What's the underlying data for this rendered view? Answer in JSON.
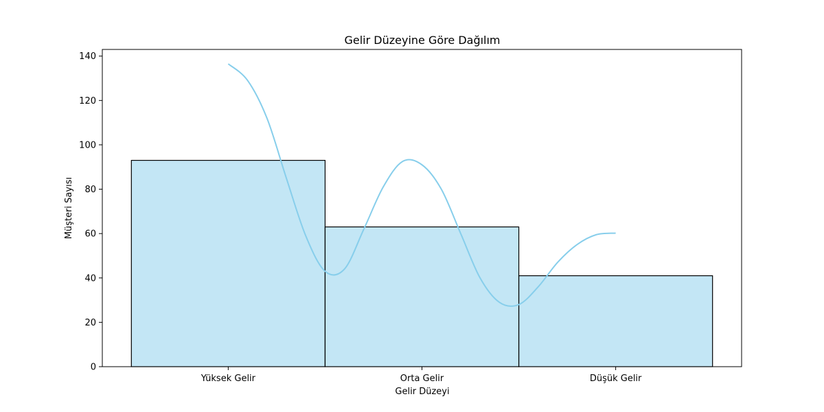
{
  "chart_data": {
    "type": "bar",
    "title": "Gelir Düzeyine Göre Dağılım",
    "xlabel": "Gelir Düzeyi",
    "ylabel": "Müşteri Sayısı",
    "categories": [
      "Yüksek Gelir",
      "Orta Gelir",
      "Düşük Gelir"
    ],
    "values": [
      93,
      63,
      41
    ],
    "ylim": [
      0,
      143
    ],
    "yticks": [
      0,
      20,
      40,
      60,
      80,
      100,
      120,
      140
    ],
    "grid": false,
    "legend": "none",
    "bar_color": "#87CEEB",
    "bar_edge_color": "#000000",
    "kde_color": "#87CEEB",
    "kde_curve": {
      "x": [
        0,
        0.1,
        0.2,
        0.3,
        0.4,
        0.5,
        0.6,
        0.7,
        0.8,
        0.9,
        1.0,
        1.1,
        1.2,
        1.3,
        1.4,
        1.5,
        1.6,
        1.7,
        1.8,
        1.9,
        2.0
      ],
      "y": [
        136.5,
        129,
        112,
        85,
        59,
        43,
        44,
        62,
        81,
        92.5,
        91,
        80,
        60,
        40,
        29,
        28,
        36,
        47,
        55,
        59.5,
        60.2
      ]
    }
  }
}
